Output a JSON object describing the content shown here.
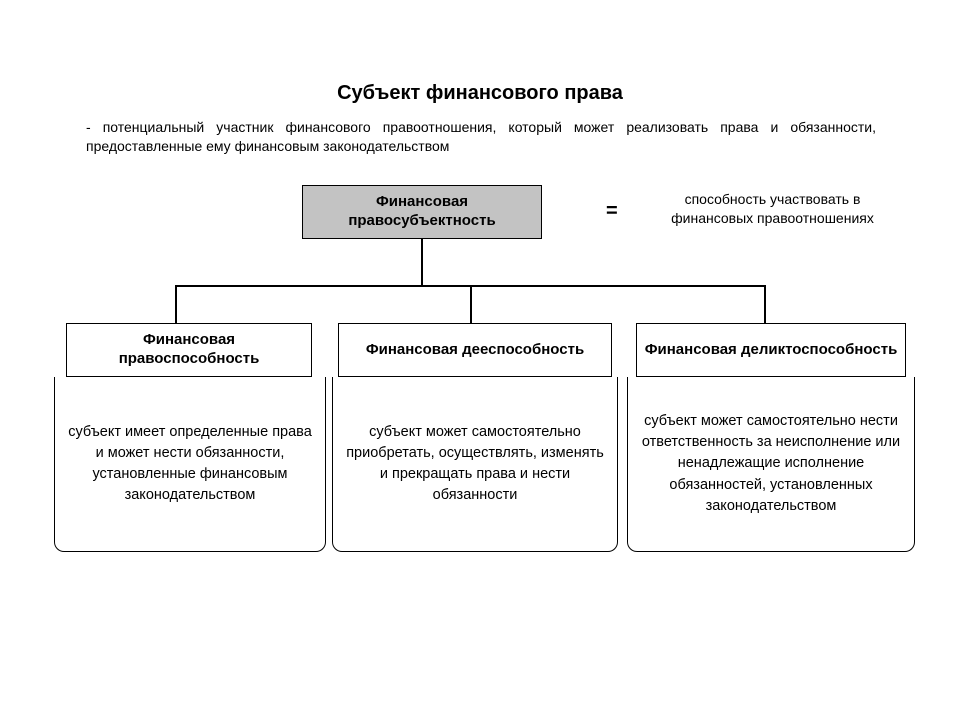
{
  "type": "flowchart",
  "background_color": "#ffffff",
  "text_color": "#000000",
  "line_color": "#000000",
  "root_fill": "#c3c3c3",
  "box_fill": "#ffffff",
  "title_fontsize": 20,
  "head_fontsize": 15,
  "body_fontsize": 14.5,
  "def_fontsize": 14,
  "title": "Субъект финансового права",
  "definition": "- потенциальный участник финансового правоотношения, который может реализовать права и обязанности, предоставленные ему финансовым законодательством",
  "root": {
    "label": "Финансовая правосубъектность",
    "equals": "=",
    "capacity_text": "способность участвовать в финансовых правоотношениях"
  },
  "branches": [
    {
      "head": "Финансовая правоспособность",
      "body": "субъект имеет определенные права и может нести обязанности, установленные финансовым законодательством"
    },
    {
      "head": "Финансовая дееспособность",
      "body": "субъект может самостоятельно приобретать, осуществлять, изменять и прекращать права и нести обязанности"
    },
    {
      "head": "Финансовая деликтоспособность",
      "body": "субъект может самостоятельно нести ответственность за неисполнение или ненадлежащие исполнение обязанностей, установленных законодательством"
    }
  ]
}
